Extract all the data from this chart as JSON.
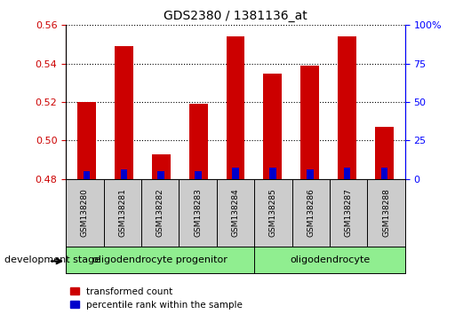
{
  "title": "GDS2380 / 1381136_at",
  "samples": [
    "GSM138280",
    "GSM138281",
    "GSM138282",
    "GSM138283",
    "GSM138284",
    "GSM138285",
    "GSM138286",
    "GSM138287",
    "GSM138288"
  ],
  "transformed_count": [
    0.52,
    0.549,
    0.493,
    0.519,
    0.554,
    0.535,
    0.539,
    0.554,
    0.507
  ],
  "percentile_rank": [
    0.484,
    0.485,
    0.484,
    0.484,
    0.486,
    0.486,
    0.485,
    0.486,
    0.486
  ],
  "baseline": 0.48,
  "ylim_left": [
    0.48,
    0.56
  ],
  "yticks_left": [
    0.48,
    0.5,
    0.52,
    0.54,
    0.56
  ],
  "ylim_right": [
    0,
    100
  ],
  "yticks_right": [
    0,
    25,
    50,
    75,
    100
  ],
  "yticklabels_right": [
    "0",
    "25",
    "50",
    "75",
    "100%"
  ],
  "bar_color": "#cc0000",
  "blue_color": "#0000cc",
  "bar_width": 0.5,
  "groups": [
    {
      "label": "oligodendrocyte progenitor",
      "indices": [
        0,
        1,
        2,
        3,
        4
      ],
      "color": "#90ee90"
    },
    {
      "label": "oligodendrocyte",
      "indices": [
        5,
        6,
        7,
        8
      ],
      "color": "#90ee90"
    }
  ],
  "sample_box_color": "#cccccc",
  "legend_items": [
    {
      "label": "transformed count",
      "color": "#cc0000"
    },
    {
      "label": "percentile rank within the sample",
      "color": "#0000cc"
    }
  ],
  "dev_stage_label": "development stage",
  "left_axis_color": "#cc0000",
  "right_axis_color": "#0000ff"
}
